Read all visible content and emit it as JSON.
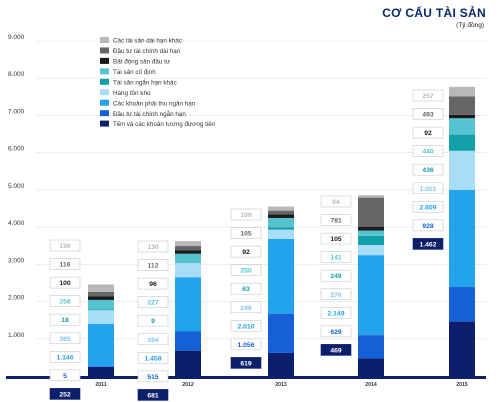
{
  "header": {
    "title": "CƠ CẤU TÀI SẢN",
    "unit": "(Tỷ đồng)"
  },
  "chart_data": {
    "type": "bar",
    "stacked": true,
    "title": "CƠ CẤU TÀI SẢN",
    "subtitle": "(Tỷ đồng)",
    "ylim": [
      0,
      9000
    ],
    "yticks": [
      "1.000",
      "2.000",
      "3.000",
      "4.000",
      "5.000",
      "6.000",
      "7.000",
      "8.000",
      "9.000"
    ],
    "grid": true,
    "legend_position": "top-left",
    "categories": [
      "2011",
      "2012",
      "2013",
      "2014",
      "2015"
    ],
    "series": [
      {
        "name": "Tiền và các khoản tương đương tiền",
        "color": "#0b1f6b",
        "values": [
          252,
          681,
          619,
          469,
          1462
        ],
        "labels": [
          "252",
          "681",
          "619",
          "469",
          "1.462"
        ]
      },
      {
        "name": "Đầu tư tài chính ngắn hạn",
        "color": "#1660d8",
        "values": [
          5,
          515,
          1056,
          629,
          928
        ],
        "labels": [
          "5",
          "515",
          "1.056",
          "629",
          "928"
        ]
      },
      {
        "name": "Các khoản phải thu ngắn hạn",
        "color": "#22a3ec",
        "values": [
          1146,
          1458,
          2010,
          2149,
          2609
        ],
        "labels": [
          "1.146",
          "1.458",
          "2.010",
          "2.149",
          "2.609"
        ]
      },
      {
        "name": "Hàng tồn kho",
        "color": "#a8dcf7",
        "values": [
          365,
          394,
          248,
          270,
          1051
        ],
        "labels": [
          "365",
          "394",
          "248",
          "270",
          "1.051"
        ]
      },
      {
        "name": "Tài sản ngắn hạn khác",
        "color": "#12a0a8",
        "values": [
          18,
          9,
          63,
          249,
          436
        ],
        "labels": [
          "18",
          "9",
          "63",
          "249",
          "436"
        ]
      },
      {
        "name": "Tài sản cố định",
        "color": "#56c3d0",
        "values": [
          258,
          227,
          250,
          141,
          440
        ],
        "labels": [
          "258",
          "227",
          "250",
          "141",
          "440"
        ]
      },
      {
        "name": "Bất động sản đầu tư",
        "color": "#1b1b1b",
        "values": [
          100,
          96,
          92,
          105,
          92
        ],
        "labels": [
          "100",
          "96",
          "92",
          "105",
          "92"
        ]
      },
      {
        "name": "Đầu tư tài chính dài hạn",
        "color": "#666666",
        "values": [
          116,
          112,
          105,
          781,
          493
        ],
        "labels": [
          "116",
          "112",
          "105",
          "781",
          "493"
        ]
      },
      {
        "name": "Các tài sản dài hạn khác",
        "color": "#b8b8b8",
        "values": [
          199,
          130,
          109,
          64,
          257
        ],
        "labels": [
          "199",
          "130",
          "109",
          "64",
          "257"
        ]
      }
    ]
  }
}
